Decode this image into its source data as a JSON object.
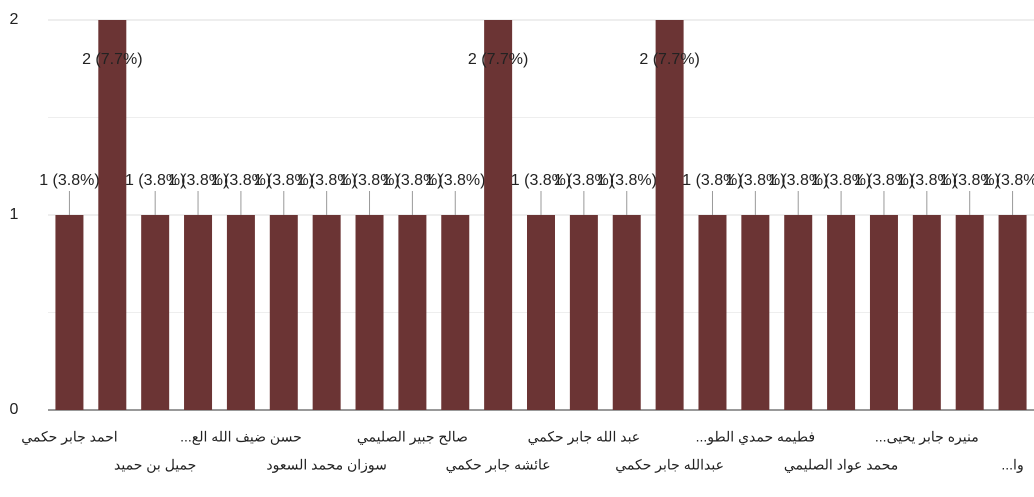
{
  "chart_data": {
    "type": "bar",
    "categories": [
      "احمد جابر حكمي",
      null,
      "جميل بن حميد",
      null,
      "حسن ضيف الله الع...",
      null,
      "سوزان محمد السعود",
      null,
      "صالح جبير الصليمي",
      null,
      "عائشه جابر حكمي",
      null,
      "عبد الله جابر حكمي",
      null,
      "عبدالله جابر حكمي",
      null,
      "فطيمه حمدي الطو...",
      null,
      "محمد عواد الصليمي",
      null,
      "منيره جابر يحيى...",
      null,
      "وا..."
    ],
    "values": [
      1,
      2,
      1,
      1,
      1,
      1,
      1,
      1,
      1,
      1,
      2,
      1,
      1,
      1,
      2,
      1,
      1,
      1,
      1,
      1,
      1,
      1,
      1
    ],
    "value_labels": [
      "1 (3.8%)",
      "2 (7.7%)",
      "1 (3.8%)",
      "1 (3.8%)",
      "1 (3.8%)",
      "1 (3.8%)",
      "1 (3.8%)",
      "1 (3.8%)",
      "1 (3.8%)",
      "1 (3.8%)",
      "2 (7.7%)",
      "1 (3.8%)",
      "1 (3.8%)",
      "1 (3.8%)",
      "2 (7.7%)",
      "1 (3.8%)",
      "1 (3.8%)",
      "1 (3.8%)",
      "1 (3.8%)",
      "1 (3.8%)",
      "1 (3.8%)",
      "1 (3.8%)",
      "1 (3.8%)"
    ],
    "color": "#6b3434",
    "ylim": [
      0,
      2
    ],
    "yticks": [
      0,
      1,
      2
    ],
    "minor_gridlines": [
      0.5,
      1.5
    ],
    "grid": true
  }
}
